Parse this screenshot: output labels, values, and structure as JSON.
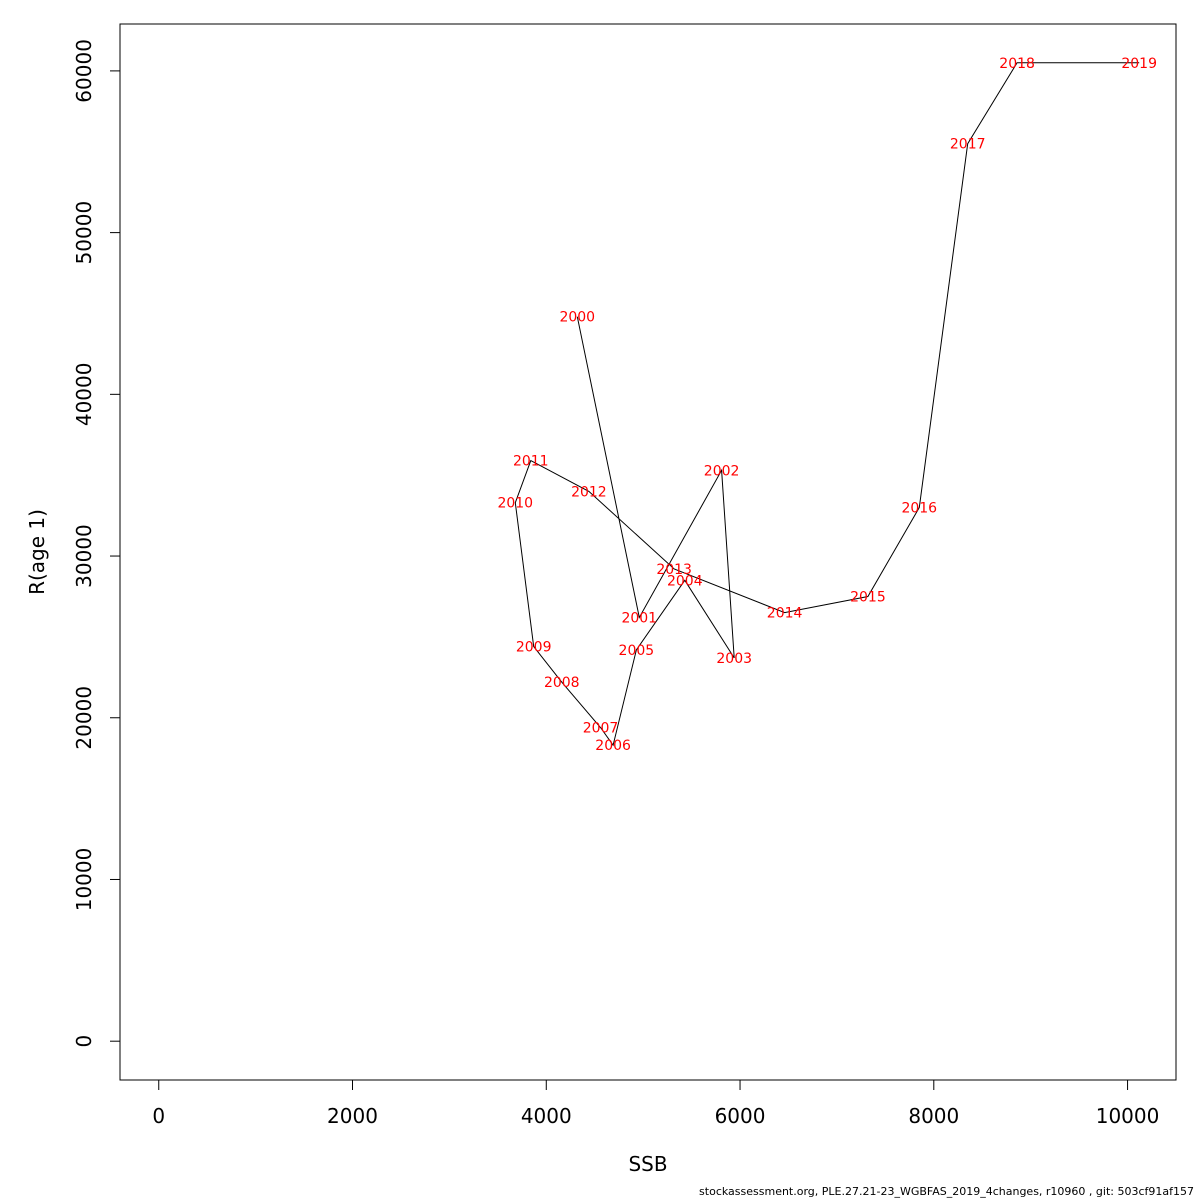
{
  "chart_data": {
    "type": "line",
    "xlabel": "SSB",
    "ylabel": "R(age 1)",
    "xlim": [
      -400,
      10500
    ],
    "ylim": [
      -2400,
      62900
    ],
    "x_ticks": [
      0,
      2000,
      4000,
      6000,
      8000,
      10000
    ],
    "y_ticks": [
      0,
      10000,
      20000,
      30000,
      40000,
      50000,
      60000
    ],
    "label_color": "#ff0000",
    "line_color": "#000000",
    "points": [
      {
        "year": "2000",
        "x": 4320,
        "y": 44800
      },
      {
        "year": "2001",
        "x": 4960,
        "y": 26200
      },
      {
        "year": "2002",
        "x": 5810,
        "y": 35300
      },
      {
        "year": "2003",
        "x": 5940,
        "y": 23700
      },
      {
        "year": "2004",
        "x": 5430,
        "y": 28500
      },
      {
        "year": "2005",
        "x": 4930,
        "y": 24200
      },
      {
        "year": "2006",
        "x": 4690,
        "y": 18300
      },
      {
        "year": "2007",
        "x": 4560,
        "y": 19400
      },
      {
        "year": "2008",
        "x": 4160,
        "y": 22200
      },
      {
        "year": "2009",
        "x": 3870,
        "y": 24400
      },
      {
        "year": "2010",
        "x": 3680,
        "y": 33300
      },
      {
        "year": "2011",
        "x": 3840,
        "y": 35900
      },
      {
        "year": "2012",
        "x": 4440,
        "y": 34000
      },
      {
        "year": "2013",
        "x": 5320,
        "y": 29200
      },
      {
        "year": "2014",
        "x": 6460,
        "y": 26500
      },
      {
        "year": "2015",
        "x": 7320,
        "y": 27500
      },
      {
        "year": "2016",
        "x": 7850,
        "y": 33000
      },
      {
        "year": "2017",
        "x": 8350,
        "y": 55500
      },
      {
        "year": "2018",
        "x": 8860,
        "y": 60500
      },
      {
        "year": "2019",
        "x": 10120,
        "y": 60500
      }
    ]
  },
  "footer": "stockassessment.org, PLE.27.21-23_WGBFAS_2019_4changes, r10960 , git: 503cf91af157"
}
